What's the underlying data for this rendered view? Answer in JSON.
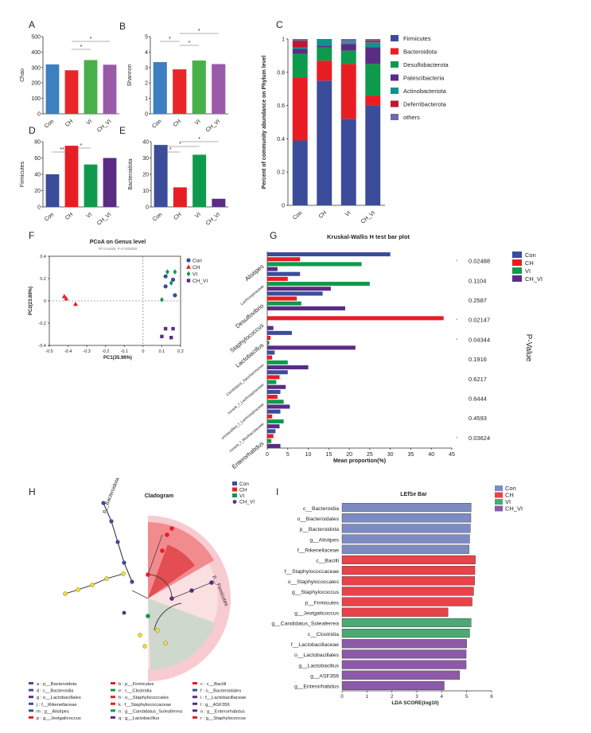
{
  "groups": [
    "Con",
    "CH",
    "VI",
    "CH_VI"
  ],
  "colors": {
    "Con": "#3d7fc1",
    "CH": "#e8262a",
    "VI": "#48b048",
    "CH_VI": "#9b5aa8",
    "D_Con": "#3b4c9b",
    "D_CH": "#e81d24",
    "D_VI": "#0e9a4c",
    "D_CH_VI": "#5b2c83",
    "Firmicutes": "#3b4c9b",
    "Bacteroidota": "#e81d24",
    "Desulfobacterota": "#0e9a4c",
    "Patescibacteria": "#5b2c83",
    "Actinobacteriota": "#11918f",
    "Deferribacterota": "#c0162e",
    "others": "#6a6aa8",
    "lefse_Con": "#7d8bc4",
    "lefse_CH": "#e8424a",
    "lefse_VI": "#4ea873",
    "lefse_CH_VI": "#8c5aa8"
  },
  "panels": {
    "A": "A",
    "B": "B",
    "C": "C",
    "D": "D",
    "E": "E",
    "F": "F",
    "G": "G",
    "H": "H",
    "I": "I"
  },
  "chart_data": [
    {
      "id": "A",
      "type": "bar",
      "categories": [
        "Con",
        "CH",
        "VI",
        "CH_VI"
      ],
      "values": [
        320,
        282,
        348,
        318
      ],
      "ylabel": "Chao",
      "ylim": [
        0,
        500
      ],
      "yticks": [
        0,
        100,
        200,
        300,
        400,
        500
      ],
      "sig": [
        "*",
        "*"
      ]
    },
    {
      "id": "B",
      "type": "bar",
      "categories": [
        "Con",
        "CH",
        "VI",
        "CH_VI"
      ],
      "values": [
        3.35,
        2.88,
        3.45,
        3.22
      ],
      "ylabel": "Shannon",
      "ylim": [
        0,
        5
      ],
      "yticks": [
        0,
        1,
        2,
        3,
        4,
        5
      ],
      "sig": [
        "*",
        "*",
        "*"
      ]
    },
    {
      "id": "C",
      "type": "stacked-bar",
      "categories": [
        "Con",
        "CH",
        "VI",
        "CH_VI"
      ],
      "ylabel": "Percent of community abundance on Phylum level",
      "ylim": [
        0,
        1
      ],
      "yticks": [
        "0",
        "0.2",
        "0.4",
        "0.6",
        "0.8",
        "1"
      ],
      "series": [
        {
          "name": "Firmicutes",
          "values": [
            0.39,
            0.75,
            0.52,
            0.6
          ]
        },
        {
          "name": "Bacteroidota",
          "values": [
            0.38,
            0.12,
            0.33,
            0.06
          ]
        },
        {
          "name": "Desulfobacterota",
          "values": [
            0.14,
            0.08,
            0.08,
            0.19
          ]
        },
        {
          "name": "Patescibacteria",
          "values": [
            0.03,
            0.01,
            0.04,
            0.1
          ]
        },
        {
          "name": "Actinobacteriota",
          "values": [
            0.01,
            0.04,
            0.01,
            0.03
          ]
        },
        {
          "name": "Deferribacterota",
          "values": [
            0.04,
            0.0,
            0.0,
            0.01
          ]
        },
        {
          "name": "others",
          "values": [
            0.01,
            0.0,
            0.02,
            0.01
          ]
        }
      ]
    },
    {
      "id": "D",
      "type": "bar",
      "categories": [
        "Con",
        "CH",
        "VI",
        "CH_VI"
      ],
      "values": [
        40,
        75,
        52,
        60
      ],
      "ylabel": "Firmicutes",
      "ylim": [
        0,
        80
      ],
      "yticks": [
        0,
        20,
        40,
        60,
        80
      ],
      "sig": [
        "**",
        "*"
      ]
    },
    {
      "id": "E",
      "type": "bar",
      "categories": [
        "Con",
        "CH",
        "VI",
        "CH_VI"
      ],
      "values": [
        38,
        12,
        32,
        5
      ],
      "ylabel": "Bacteroidota",
      "ylim": [
        0,
        40
      ],
      "yticks": [
        0,
        10,
        20,
        30,
        40
      ],
      "sig": [
        "*",
        "*",
        "*"
      ]
    },
    {
      "id": "F",
      "type": "scatter",
      "title": "PCoA on Genus level",
      "subtitle": "R²=0.6435, P=0.002000",
      "xlabel": "PC1(35.96%)",
      "ylabel": "PC2(23.89%)",
      "xlim": [
        -0.5,
        0.2
      ],
      "ylim": [
        -0.4,
        0.4
      ],
      "xticks": [
        "-0.5",
        "-0.4",
        "-0.3",
        "-0.2",
        "-0.1",
        "0",
        "0.1",
        "0.2"
      ],
      "yticks": [
        "-0.4",
        "-0.2",
        "0",
        "0.2",
        "0.4"
      ],
      "series": [
        {
          "name": "Con",
          "marker": "circle",
          "points": [
            [
              0.12,
              0.22
            ],
            [
              0.12,
              0.13
            ],
            [
              0.16,
              0.19
            ],
            [
              0.17,
              0.05
            ]
          ]
        },
        {
          "name": "CH",
          "marker": "triangle",
          "points": [
            [
              -0.42,
              0.04
            ],
            [
              -0.41,
              0.02
            ],
            [
              -0.36,
              -0.03
            ]
          ]
        },
        {
          "name": "VI",
          "marker": "diamond",
          "points": [
            [
              0.13,
              0.26
            ],
            [
              0.15,
              0.16
            ],
            [
              0.1,
              0.01
            ],
            [
              0.17,
              0.26
            ]
          ]
        },
        {
          "name": "CH_VI",
          "marker": "square",
          "points": [
            [
              0.1,
              -0.32
            ],
            [
              0.12,
              -0.25
            ],
            [
              0.15,
              -0.33
            ],
            [
              0.16,
              -0.25
            ]
          ]
        }
      ]
    },
    {
      "id": "G",
      "type": "bar",
      "orientation": "horizontal",
      "title": "Kruskal-Wallis H test bar plot",
      "xlabel": "Mean proportion(%)",
      "xlim": [
        0,
        45
      ],
      "xticks": [
        0,
        5,
        10,
        15,
        20,
        25,
        30,
        35,
        40,
        45
      ],
      "pvalue_label": "P-Value",
      "categories": [
        "Alistipes",
        "Lachnospiraceae",
        "Desulfovibrio",
        "Staphylococcus",
        "Lactobacillus",
        "Candidatus_Saccharimonas",
        "norank_f_Lachnospiraceae",
        "unclassified_f_Lachnospiraceae",
        "norank_f_Muribaculaceae",
        "Enterorhabdus"
      ],
      "pvalues": [
        "0.02488",
        "0.1104",
        "0.2587",
        "0.02147",
        "0.04344",
        "0.1916",
        "0.6217",
        "0.6444",
        "0.4593",
        "0.03624"
      ],
      "stars": [
        "*",
        "",
        "",
        "*",
        "*",
        "",
        "",
        "",
        "",
        "*"
      ],
      "series": [
        {
          "name": "Con",
          "values": [
            30,
            8,
            13.5,
            0,
            6,
            1.8,
            5,
            3.2,
            3.2,
            2
          ]
        },
        {
          "name": "CH",
          "values": [
            8,
            5,
            7.2,
            43,
            0.8,
            1.2,
            3,
            2.5,
            1.2,
            1.5
          ]
        },
        {
          "name": "VI",
          "values": [
            23,
            25,
            8.3,
            0,
            0.5,
            5,
            2.2,
            4,
            4,
            1
          ]
        },
        {
          "name": "CH_VI",
          "values": [
            2.5,
            15.5,
            19,
            1.5,
            21.5,
            10,
            4.5,
            5.5,
            3,
            3.2
          ]
        }
      ]
    },
    {
      "id": "H",
      "type": "cladogram",
      "title": "Cladogram",
      "clade_labels": [
        "p__Bacteroidota",
        "p__Firmicutes"
      ],
      "legend": [
        {
          "k": "a",
          "t": "a : p__Bacteroidota",
          "c": "Con"
        },
        {
          "k": "b",
          "t": "b : p__Firmicutes",
          "c": "CH"
        },
        {
          "k": "c",
          "t": "c : c__Bacilli",
          "c": "CH"
        },
        {
          "k": "d",
          "t": "d : c__Bacteroidia",
          "c": "Con"
        },
        {
          "k": "e",
          "t": "e : c__Clostridia",
          "c": "VI"
        },
        {
          "k": "f",
          "t": "f : o__Bacteroidales",
          "c": "Con"
        },
        {
          "k": "g",
          "t": "g : o__Lactobacillales",
          "c": "CH_VI"
        },
        {
          "k": "h",
          "t": "h : o__Staphylococcales",
          "c": "CH"
        },
        {
          "k": "i",
          "t": "i : f__Lactobacillaceae",
          "c": "CH_VI"
        },
        {
          "k": "j",
          "t": "j : f__Rikenellaceae",
          "c": "Con"
        },
        {
          "k": "k",
          "t": "k : f__Staphylococcaceae",
          "c": "CH"
        },
        {
          "k": "l",
          "t": "l : g__ASF356",
          "c": "CH_VI"
        },
        {
          "k": "m",
          "t": "m : g__Alistipes",
          "c": "Con"
        },
        {
          "k": "n",
          "t": "n : g__Candidatus_Soleaferrea",
          "c": "VI"
        },
        {
          "k": "o",
          "t": "o : g__Enterorhabdus",
          "c": "CH_VI"
        },
        {
          "k": "p",
          "t": "p : g__Jeotgalicoccus",
          "c": "CH"
        },
        {
          "k": "q",
          "t": "q : g__Lactobacillus",
          "c": "CH_VI"
        },
        {
          "k": "r",
          "t": "r : g__Staphylococcus",
          "c": "CH"
        }
      ]
    },
    {
      "id": "I",
      "type": "bar",
      "orientation": "horizontal",
      "title": "LEfSe Bar",
      "xlabel": "LDA SCORE(log10)",
      "xlim": [
        0,
        6
      ],
      "xticks": [
        0,
        1,
        2,
        3,
        4,
        5,
        6
      ],
      "categories": [
        "c__Bacteroidia",
        "o__Bacteroidales",
        "p__Bacteroidota",
        "g__Alistipes",
        "f__Rikenellaceae",
        "c__Bacilli",
        "f__Staphylococcaceae",
        "o__Staphylococcales",
        "g__Staphylococcus",
        "p__Firmicutes",
        "g__Jeotgalicoccus",
        "g__Candidatus_Soleaferrea",
        "c__Clostridia",
        "f__Lactobacillaceae",
        "o__Lactobacillales",
        "g__Lactobacillus",
        "g__ASF356",
        "g__Enterorhabdus"
      ],
      "groups": [
        "Con",
        "Con",
        "Con",
        "Con",
        "Con",
        "CH",
        "CH",
        "CH",
        "CH",
        "CH",
        "CH",
        "VI",
        "VI",
        "CH_VI",
        "CH_VI",
        "CH_VI",
        "CH_VI",
        "CH_VI"
      ],
      "values": [
        5.18,
        5.17,
        5.15,
        5.12,
        5.1,
        5.35,
        5.33,
        5.32,
        5.28,
        5.22,
        4.25,
        5.18,
        5.12,
        5.0,
        4.98,
        4.98,
        4.72,
        4.1
      ]
    }
  ]
}
